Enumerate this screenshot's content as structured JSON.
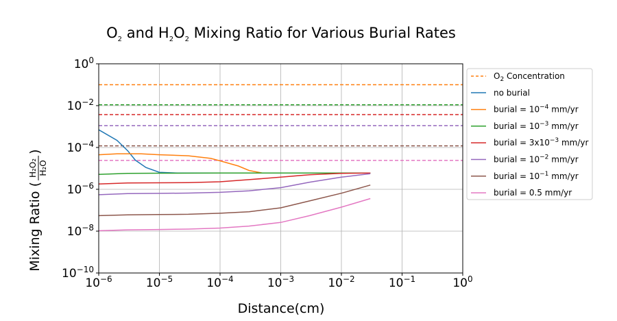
{
  "chart_data": {
    "type": "line",
    "title": {
      "pre": "O",
      "sub1": "2",
      "mid": " and H",
      "sub2": "2",
      "mid2": "O",
      "sub3": "2",
      "post": " Mixing Ratio for Various Burial Rates"
    },
    "xlabel": "Distance(cm)",
    "ylabel": {
      "main": "Mixing Ratio (",
      "num": "H₂O₂",
      "den": "H₂O",
      "close": ")"
    },
    "x_scale": "log",
    "y_scale": "log",
    "xlim": [
      1e-06,
      1
    ],
    "ylim": [
      1e-10,
      1
    ],
    "grid": true,
    "x_ticks": [
      {
        "base": "10",
        "exp": "−6",
        "value": 1e-06
      },
      {
        "base": "10",
        "exp": "−5",
        "value": 1e-05
      },
      {
        "base": "10",
        "exp": "−4",
        "value": 0.0001
      },
      {
        "base": "10",
        "exp": "−3",
        "value": 0.001
      },
      {
        "base": "10",
        "exp": "−2",
        "value": 0.01
      },
      {
        "base": "10",
        "exp": "−1",
        "value": 0.1
      },
      {
        "base": "10",
        "exp": "0",
        "value": 1
      }
    ],
    "y_ticks": [
      {
        "base": "10",
        "exp": "−10",
        "value": 1e-10
      },
      {
        "base": "10",
        "exp": "−8",
        "value": 1e-08
      },
      {
        "base": "10",
        "exp": "−6",
        "value": 1e-06
      },
      {
        "base": "10",
        "exp": "−4",
        "value": 0.0001
      },
      {
        "base": "10",
        "exp": "−2",
        "value": 0.01
      },
      {
        "base": "10",
        "exp": "0",
        "value": 1
      }
    ],
    "legend_position": "right, outside plot area",
    "dashed_lines": [
      {
        "color": "#ff7f0e",
        "y": 0.1
      },
      {
        "color": "#2ca02c",
        "y": 0.011
      },
      {
        "color": "#d62728",
        "y": 0.0037
      },
      {
        "color": "#9467bd",
        "y": 0.0011
      },
      {
        "color": "#8c564b",
        "y": 0.00012
      },
      {
        "color": "#e377c2",
        "y": 2.4e-05
      }
    ],
    "series": [
      {
        "name": "no burial",
        "color": "#1f77b4",
        "x": [
          1e-06,
          2e-06,
          3e-06,
          4e-06,
          6e-06,
          1e-05,
          2e-05,
          0.0001,
          0.001,
          0.01,
          0.03
        ],
        "y": [
          0.0007,
          0.00022,
          7e-05,
          2.5e-05,
          1.1e-05,
          6.5e-06,
          6e-06,
          6e-06,
          6e-06,
          6e-06,
          6e-06
        ]
      },
      {
        "name": "burial = 10⁻⁴ mm/yr",
        "color": "#ff7f0e",
        "x": [
          1e-06,
          2e-06,
          5e-06,
          1e-05,
          3e-05,
          7e-05,
          0.0001,
          0.0002,
          0.0003,
          0.0005,
          0.001,
          0.01,
          0.03
        ],
        "y": [
          4.5e-05,
          5e-05,
          5e-05,
          4.5e-05,
          4e-05,
          3e-05,
          2.3e-05,
          1.3e-05,
          8e-06,
          6e-06,
          6e-06,
          6e-06,
          6e-06
        ]
      },
      {
        "name": "burial = 10⁻³ mm/yr",
        "color": "#2ca02c",
        "x": [
          1e-06,
          3e-06,
          1e-05,
          0.0001,
          0.001,
          0.01,
          0.03
        ],
        "y": [
          5.2e-06,
          5.8e-06,
          5.9e-06,
          6e-06,
          6e-06,
          6e-06,
          6e-06
        ]
      },
      {
        "name": "burial = 3x10⁻³ mm/yr",
        "color": "#d62728",
        "x": [
          1e-06,
          3e-06,
          1e-05,
          3e-05,
          0.0001,
          0.0003,
          0.001,
          0.003,
          0.01,
          0.03
        ],
        "y": [
          1.8e-06,
          2e-06,
          2.05e-06,
          2.1e-06,
          2.3e-06,
          2.9e-06,
          3.8e-06,
          5e-06,
          5.8e-06,
          6e-06
        ]
      },
      {
        "name": "burial = 10⁻² mm/yr",
        "color": "#9467bd",
        "x": [
          1e-06,
          3e-06,
          1e-05,
          3e-05,
          0.0001,
          0.0003,
          0.001,
          0.003,
          0.01,
          0.03
        ],
        "y": [
          5.5e-07,
          6.2e-07,
          6.4e-07,
          6.6e-07,
          7.2e-07,
          8.5e-07,
          1.2e-06,
          2.2e-06,
          3.8e-06,
          5.6e-06
        ]
      },
      {
        "name": "burial = 10⁻¹ mm/yr",
        "color": "#8c564b",
        "x": [
          1e-06,
          3e-06,
          1e-05,
          3e-05,
          0.0001,
          0.0003,
          0.001,
          0.003,
          0.01,
          0.03
        ],
        "y": [
          5.5e-08,
          6e-08,
          6.2e-08,
          6.4e-08,
          7.2e-08,
          8.5e-08,
          1.3e-07,
          2.8e-07,
          6.5e-07,
          1.6e-06
        ]
      },
      {
        "name": "burial = 0.5 mm/yr",
        "color": "#e377c2",
        "x": [
          1e-06,
          3e-06,
          1e-05,
          3e-05,
          0.0001,
          0.0003,
          0.001,
          0.003,
          0.01,
          0.03
        ],
        "y": [
          1.05e-08,
          1.15e-08,
          1.2e-08,
          1.25e-08,
          1.4e-08,
          1.75e-08,
          2.6e-08,
          5.5e-08,
          1.4e-07,
          3.6e-07
        ]
      }
    ],
    "legend": [
      {
        "kind": "dashed",
        "color": "#ff7f0e",
        "pre": "O",
        "sub": "2",
        "post": " Concentration"
      },
      {
        "kind": "solid",
        "color": "#1f77b4",
        "label": "no burial"
      },
      {
        "kind": "solid",
        "color": "#ff7f0e",
        "pre": "burial = 10",
        "sup": "−4",
        "post": " mm/yr"
      },
      {
        "kind": "solid",
        "color": "#2ca02c",
        "pre": "burial = 10",
        "sup": "−3",
        "post": " mm/yr"
      },
      {
        "kind": "solid",
        "color": "#d62728",
        "pre": "burial = 3x10",
        "sup": "−3",
        "post": " mm/yr"
      },
      {
        "kind": "solid",
        "color": "#9467bd",
        "pre": "burial = 10",
        "sup": "−2",
        "post": " mm/yr"
      },
      {
        "kind": "solid",
        "color": "#8c564b",
        "pre": "burial = 10",
        "sup": "−1",
        "post": " mm/yr"
      },
      {
        "kind": "solid",
        "color": "#e377c2",
        "label": "burial = 0.5 mm/yr"
      }
    ]
  }
}
